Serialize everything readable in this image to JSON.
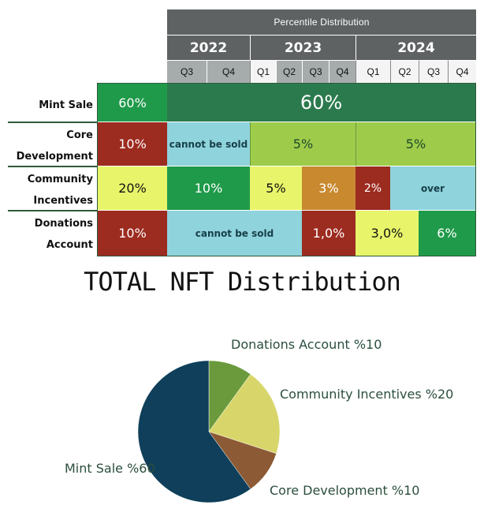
{
  "table": {
    "header_title": "Percentile Distribution",
    "years": [
      "2022",
      "2023",
      "2024"
    ],
    "quarters": [
      "Q3",
      "Q4",
      "Q1",
      "Q2",
      "Q3",
      "Q4",
      "Q1",
      "Q2",
      "Q3",
      "Q4"
    ],
    "rows": [
      {
        "label_line1": "Mint Sale",
        "label_line2": "",
        "initial": "60%",
        "cells": [
          "60%"
        ]
      },
      {
        "label_line1": "Core",
        "label_line2": "Development",
        "initial": "10%",
        "cells": [
          "cannot be sold",
          "5%",
          "5%"
        ]
      },
      {
        "label_line1": "Community",
        "label_line2": "Incentives",
        "initial": "20%",
        "cells": [
          "10%",
          "5%",
          "3%",
          "2%",
          "over"
        ]
      },
      {
        "label_line1": "Donations",
        "label_line2": "Account",
        "initial": "10%",
        "cells": [
          "cannot be sold",
          "1,0%",
          "3,0%",
          "6%"
        ]
      }
    ],
    "colors": {
      "green_dark": "#1f9a4a",
      "red": "#9c2b20",
      "light_blue": "#8fd3dc",
      "lime": "#9ecb4a",
      "yellow": "#e8f56a",
      "orange": "#c8892f"
    }
  },
  "chart_data": {
    "type": "pie",
    "title": "TOTAL NFT Distribution",
    "slices": [
      {
        "label": "Donations Account %10",
        "value": 10,
        "color": "#6b9a3c"
      },
      {
        "label": "Community Incentives %20",
        "value": 20,
        "color": "#d8d66a"
      },
      {
        "label": "Core Development %10",
        "value": 10,
        "color": "#8c5a34"
      },
      {
        "label": "Mint Sale %60",
        "value": 60,
        "color": "#0f3f5a"
      }
    ]
  }
}
